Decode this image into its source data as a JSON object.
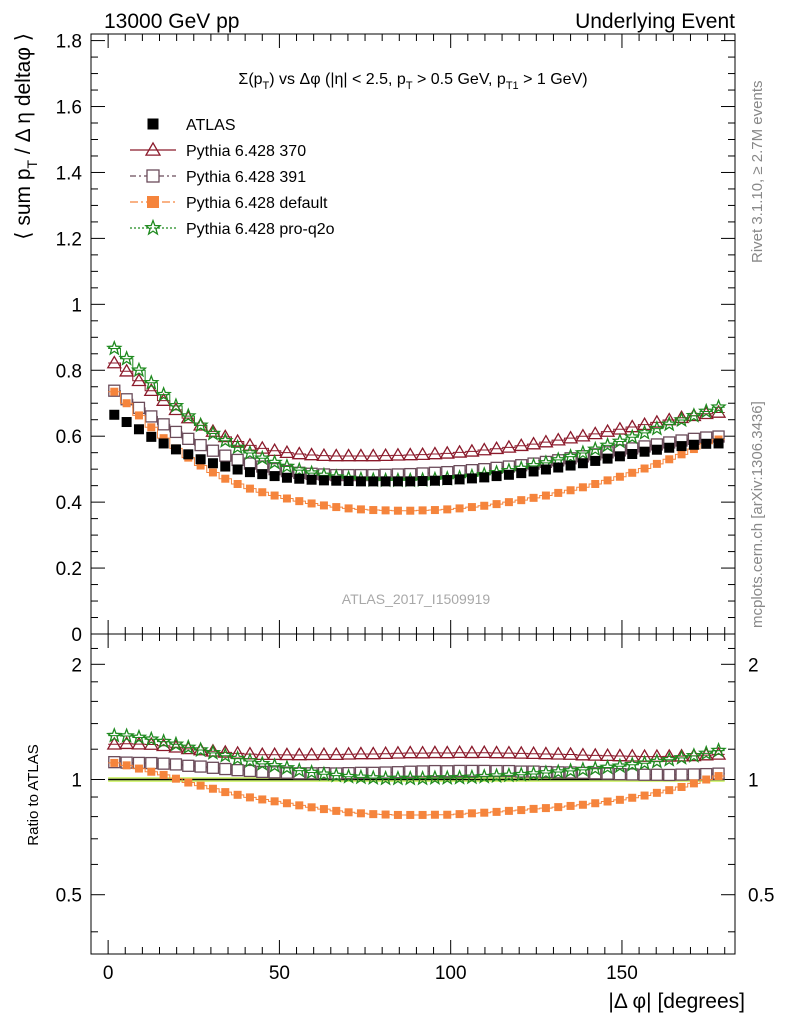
{
  "header": {
    "left": "13000 GeV pp",
    "right": "Underlying Event"
  },
  "side": {
    "rivet": "Rivet 3.1.10, ≥ 2.7M events",
    "mcplots": "mcplots.cern.ch [arXiv:1306.3436]"
  },
  "colors": {
    "atlas": "#000000",
    "p370": "#8b1a2b",
    "p391": "#6b4c5a",
    "default": "#f5843c",
    "proq2o": "#1f8a1f",
    "band": "#d4f57a"
  },
  "chart_data": [
    {
      "type": "scatter",
      "title": "Σ(p_T) vs Δφ (|η| < 2.5, p_T > 0.5 GeV, p_T1 > 1 GeV)",
      "ylabel": "⟨ sum p_T / Δη deltaφ ⟩",
      "watermark": "ATLAS_2017_I1509919",
      "ylim": [
        0,
        1.82
      ],
      "yticks": [
        "0",
        "0.2",
        "0.4",
        "0.6",
        "0.8",
        "1",
        "1.2",
        "1.4",
        "1.6",
        "1.8"
      ],
      "legend_position": "top-left",
      "x": [
        1.8,
        5.4,
        9.0,
        12.6,
        16.2,
        19.8,
        23.4,
        27.0,
        30.6,
        34.2,
        37.8,
        41.4,
        45.0,
        48.6,
        52.2,
        55.8,
        59.4,
        63.0,
        66.6,
        70.2,
        73.8,
        77.4,
        81.0,
        84.6,
        88.2,
        91.8,
        95.4,
        99.0,
        102.6,
        106.2,
        109.8,
        113.4,
        117.0,
        120.6,
        124.2,
        127.8,
        131.4,
        135.0,
        138.6,
        142.2,
        145.8,
        149.4,
        153.0,
        156.6,
        160.2,
        163.8,
        167.4,
        171.0,
        174.6,
        178.2
      ],
      "series": [
        {
          "name": "ATLAS",
          "color": "#000000",
          "marker": "filled-square",
          "values": [
            0.665,
            0.643,
            0.621,
            0.598,
            0.578,
            0.56,
            0.545,
            0.53,
            0.518,
            0.508,
            0.499,
            0.491,
            0.485,
            0.479,
            0.474,
            0.471,
            0.468,
            0.466,
            0.465,
            0.464,
            0.463,
            0.463,
            0.463,
            0.463,
            0.463,
            0.464,
            0.465,
            0.467,
            0.469,
            0.472,
            0.475,
            0.479,
            0.483,
            0.488,
            0.493,
            0.499,
            0.505,
            0.511,
            0.518,
            0.525,
            0.532,
            0.539,
            0.546,
            0.553,
            0.559,
            0.565,
            0.57,
            0.574,
            0.577,
            0.578
          ]
        },
        {
          "name": "Pythia 6.428 370",
          "color": "#8b1a2b",
          "marker": "open-triangle",
          "values": [
            0.822,
            0.797,
            0.768,
            0.738,
            0.708,
            0.68,
            0.655,
            0.633,
            0.614,
            0.598,
            0.584,
            0.572,
            0.563,
            0.556,
            0.55,
            0.546,
            0.543,
            0.541,
            0.54,
            0.54,
            0.54,
            0.54,
            0.541,
            0.542,
            0.543,
            0.544,
            0.546,
            0.548,
            0.551,
            0.554,
            0.558,
            0.562,
            0.566,
            0.571,
            0.576,
            0.582,
            0.588,
            0.594,
            0.6,
            0.607,
            0.614,
            0.621,
            0.628,
            0.635,
            0.642,
            0.649,
            0.656,
            0.662,
            0.668,
            0.672
          ]
        },
        {
          "name": "Pythia 6.428 391",
          "color": "#6b4c5a",
          "marker": "open-square",
          "values": [
            0.738,
            0.712,
            0.686,
            0.66,
            0.636,
            0.613,
            0.592,
            0.573,
            0.556,
            0.541,
            0.528,
            0.517,
            0.508,
            0.5,
            0.494,
            0.489,
            0.486,
            0.484,
            0.482,
            0.482,
            0.482,
            0.482,
            0.483,
            0.484,
            0.485,
            0.487,
            0.489,
            0.491,
            0.494,
            0.497,
            0.5,
            0.504,
            0.508,
            0.512,
            0.517,
            0.522,
            0.527,
            0.533,
            0.539,
            0.545,
            0.551,
            0.557,
            0.563,
            0.569,
            0.575,
            0.581,
            0.587,
            0.592,
            0.596,
            0.599
          ]
        },
        {
          "name": "Pythia 6.428 default",
          "color": "#f5843c",
          "marker": "filled-square",
          "values": [
            0.735,
            0.7,
            0.663,
            0.627,
            0.594,
            0.563,
            0.535,
            0.511,
            0.49,
            0.471,
            0.455,
            0.441,
            0.43,
            0.42,
            0.411,
            0.403,
            0.396,
            0.39,
            0.385,
            0.381,
            0.378,
            0.376,
            0.375,
            0.374,
            0.374,
            0.375,
            0.376,
            0.378,
            0.381,
            0.385,
            0.389,
            0.394,
            0.4,
            0.406,
            0.413,
            0.42,
            0.428,
            0.436,
            0.445,
            0.455,
            0.466,
            0.477,
            0.489,
            0.502,
            0.516,
            0.53,
            0.545,
            0.561,
            0.577,
            0.59
          ]
        },
        {
          "name": "Pythia 6.428 pro-q2o",
          "color": "#1f8a1f",
          "marker": "open-star",
          "values": [
            0.866,
            0.835,
            0.8,
            0.762,
            0.726,
            0.692,
            0.661,
            0.633,
            0.608,
            0.586,
            0.566,
            0.549,
            0.533,
            0.52,
            0.508,
            0.497,
            0.488,
            0.481,
            0.476,
            0.472,
            0.469,
            0.467,
            0.466,
            0.466,
            0.466,
            0.467,
            0.469,
            0.471,
            0.474,
            0.478,
            0.483,
            0.489,
            0.495,
            0.502,
            0.51,
            0.519,
            0.528,
            0.538,
            0.549,
            0.56,
            0.572,
            0.584,
            0.597,
            0.61,
            0.623,
            0.636,
            0.649,
            0.662,
            0.675,
            0.688
          ]
        }
      ]
    },
    {
      "type": "scatter",
      "ylabel": "Ratio to ATLAS",
      "xlabel": "|Δ φ| [degrees]",
      "xlim": [
        -5,
        183
      ],
      "xticks": [
        "0",
        "50",
        "100",
        "150"
      ],
      "ylim": [
        0.35,
        2.4
      ],
      "ylog": true,
      "yticks": [
        "0.5",
        "1",
        "2"
      ],
      "series": [
        {
          "name": "Pythia 6.428 370",
          "color": "#8b1a2b",
          "marker": "open-triangle",
          "values": [
            1.236,
            1.24,
            1.237,
            1.234,
            1.225,
            1.214,
            1.202,
            1.194,
            1.185,
            1.177,
            1.17,
            1.165,
            1.161,
            1.161,
            1.16,
            1.159,
            1.16,
            1.161,
            1.161,
            1.164,
            1.166,
            1.166,
            1.168,
            1.171,
            1.173,
            1.172,
            1.174,
            1.173,
            1.175,
            1.174,
            1.175,
            1.173,
            1.172,
            1.17,
            1.168,
            1.166,
            1.164,
            1.162,
            1.158,
            1.156,
            1.154,
            1.152,
            1.15,
            1.148,
            1.148,
            1.149,
            1.151,
            1.153,
            1.158,
            1.163
          ]
        },
        {
          "name": "Pythia 6.428 391",
          "color": "#6b4c5a",
          "marker": "open-square",
          "values": [
            1.11,
            1.107,
            1.105,
            1.104,
            1.1,
            1.095,
            1.086,
            1.081,
            1.073,
            1.065,
            1.058,
            1.053,
            1.047,
            1.044,
            1.042,
            1.038,
            1.038,
            1.039,
            1.037,
            1.039,
            1.041,
            1.041,
            1.043,
            1.045,
            1.048,
            1.05,
            1.052,
            1.051,
            1.053,
            1.053,
            1.053,
            1.052,
            1.052,
            1.049,
            1.049,
            1.046,
            1.044,
            1.043,
            1.041,
            1.038,
            1.036,
            1.033,
            1.031,
            1.029,
            1.029,
            1.028,
            1.03,
            1.031,
            1.033,
            1.036
          ]
        },
        {
          "name": "Pythia 6.428 default",
          "color": "#f5843c",
          "marker": "filled-square",
          "values": [
            1.105,
            1.089,
            1.068,
            1.048,
            1.028,
            1.005,
            0.982,
            0.964,
            0.946,
            0.927,
            0.912,
            0.898,
            0.887,
            0.877,
            0.867,
            0.856,
            0.846,
            0.837,
            0.828,
            0.821,
            0.816,
            0.812,
            0.81,
            0.808,
            0.808,
            0.808,
            0.809,
            0.809,
            0.812,
            0.816,
            0.819,
            0.823,
            0.828,
            0.832,
            0.838,
            0.842,
            0.847,
            0.853,
            0.859,
            0.867,
            0.876,
            0.885,
            0.896,
            0.908,
            0.923,
            0.938,
            0.956,
            0.977,
            1.0,
            1.021
          ]
        },
        {
          "name": "Pythia 6.428 pro-q2o",
          "color": "#1f8a1f",
          "marker": "open-star",
          "values": [
            1.302,
            1.299,
            1.288,
            1.274,
            1.256,
            1.236,
            1.213,
            1.194,
            1.174,
            1.154,
            1.134,
            1.118,
            1.099,
            1.086,
            1.072,
            1.055,
            1.043,
            1.032,
            1.024,
            1.017,
            1.013,
            1.009,
            1.006,
            1.006,
            1.006,
            1.006,
            1.009,
            1.009,
            1.011,
            1.013,
            1.017,
            1.021,
            1.025,
            1.029,
            1.034,
            1.04,
            1.046,
            1.053,
            1.06,
            1.067,
            1.075,
            1.083,
            1.093,
            1.103,
            1.114,
            1.126,
            1.139,
            1.153,
            1.17,
            1.19
          ]
        }
      ]
    }
  ]
}
